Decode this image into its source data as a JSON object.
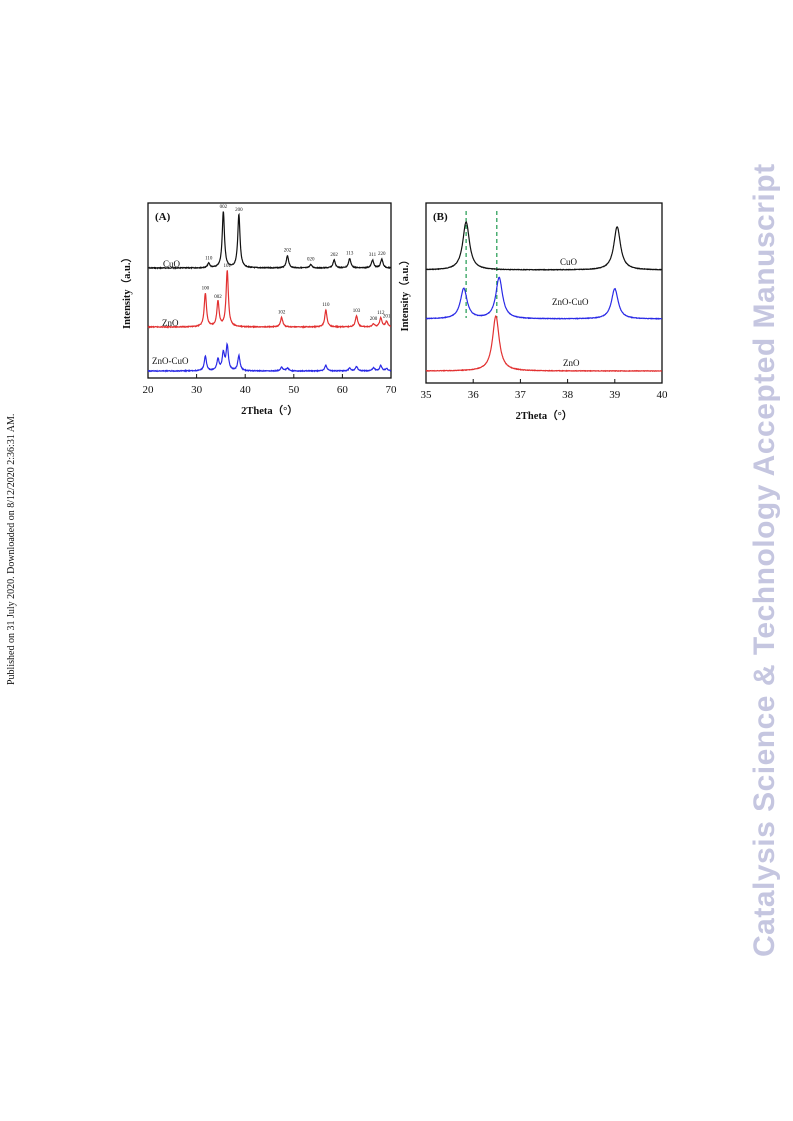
{
  "side_note": "Published on 31 July 2020. Downloaded on 8/12/2020 2:36:31 AM.",
  "watermark": "Catalysis Science & Technology Accepted Manuscript",
  "colors": {
    "CuO": "#111111",
    "ZnO": "#e23131",
    "ZnO-CuO": "#2a2ae6",
    "guide": "#1f9a4f"
  },
  "chart_data": [
    {
      "panel": "(A)",
      "type": "line",
      "xlabel": "2Theta（°）",
      "ylabel": "Intensity（a.u.）",
      "xlim": [
        20,
        70
      ],
      "xticks": [
        "20",
        "30",
        "40",
        "50",
        "60",
        "70"
      ],
      "series": [
        {
          "name": "CuO",
          "peaks": [
            {
              "x": 32.5,
              "h": 0.08,
              "label": "110"
            },
            {
              "x": 35.5,
              "h": 1.0,
              "label": "002"
            },
            {
              "x": 38.7,
              "h": 0.95,
              "label": "200"
            },
            {
              "x": 48.7,
              "h": 0.22,
              "label": "202"
            },
            {
              "x": 53.5,
              "h": 0.06,
              "label": "020"
            },
            {
              "x": 58.3,
              "h": 0.14,
              "label": "202"
            },
            {
              "x": 61.5,
              "h": 0.17,
              "label": "113"
            },
            {
              "x": 66.2,
              "h": 0.14,
              "label": "311"
            },
            {
              "x": 68.1,
              "h": 0.16,
              "label": "220"
            }
          ]
        },
        {
          "name": "ZnO",
          "peaks": [
            {
              "x": 31.8,
              "h": 0.6,
              "label": "100"
            },
            {
              "x": 34.4,
              "h": 0.45,
              "label": "002"
            },
            {
              "x": 36.3,
              "h": 1.0,
              "label": "101"
            },
            {
              "x": 47.5,
              "h": 0.17,
              "label": "102"
            },
            {
              "x": 56.6,
              "h": 0.3,
              "label": "110"
            },
            {
              "x": 62.9,
              "h": 0.2,
              "label": "103"
            },
            {
              "x": 66.4,
              "h": 0.05,
              "label": "200"
            },
            {
              "x": 67.9,
              "h": 0.16,
              "label": "112"
            },
            {
              "x": 69.1,
              "h": 0.1,
              "label": "201"
            }
          ]
        },
        {
          "name": "ZnO-CuO",
          "peaks": [
            {
              "x": 31.8,
              "h": 0.38
            },
            {
              "x": 34.4,
              "h": 0.3
            },
            {
              "x": 35.5,
              "h": 0.45
            },
            {
              "x": 36.3,
              "h": 0.65
            },
            {
              "x": 38.7,
              "h": 0.4
            },
            {
              "x": 47.5,
              "h": 0.1
            },
            {
              "x": 48.7,
              "h": 0.08
            },
            {
              "x": 56.6,
              "h": 0.15
            },
            {
              "x": 61.5,
              "h": 0.07
            },
            {
              "x": 62.9,
              "h": 0.12
            },
            {
              "x": 66.4,
              "h": 0.08
            },
            {
              "x": 67.9,
              "h": 0.14
            },
            {
              "x": 69.1,
              "h": 0.06
            }
          ]
        }
      ]
    },
    {
      "panel": "(B)",
      "type": "line",
      "xlabel": "2Theta（°）",
      "ylabel": "Intensity（a.u.）",
      "xlim": [
        35,
        40
      ],
      "xticks": [
        "35",
        "36",
        "37",
        "38",
        "39",
        "40"
      ],
      "reference_lines": [
        35.85,
        36.5
      ],
      "series": [
        {
          "name": "CuO",
          "peaks": [
            {
              "x": 35.85,
              "h": 1.0
            },
            {
              "x": 39.05,
              "h": 0.9
            }
          ]
        },
        {
          "name": "ZnO-CuO",
          "peaks": [
            {
              "x": 35.8,
              "h": 0.55
            },
            {
              "x": 36.55,
              "h": 0.75
            },
            {
              "x": 39.0,
              "h": 0.55
            }
          ]
        },
        {
          "name": "ZnO",
          "peaks": [
            {
              "x": 36.48,
              "h": 1.0
            }
          ]
        }
      ]
    }
  ]
}
